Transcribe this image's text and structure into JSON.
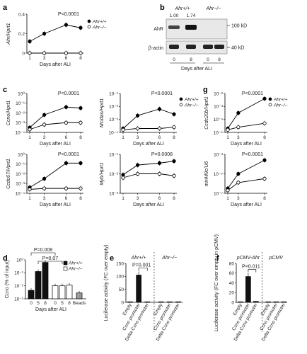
{
  "chart_data": [
    {
      "id": "a",
      "panel": "a",
      "type": "line",
      "x": [
        1,
        3,
        6,
        8
      ],
      "xlabel": "Days after ALI",
      "ylabel": "Ahr/Hprt1",
      "ylim": [
        0,
        0.4
      ],
      "ytick_labels": [
        "0",
        "0.2",
        "0.4"
      ],
      "scale": "linear",
      "stat": "P<0.0001",
      "series": [
        {
          "name": "Ahr+/+",
          "values": [
            0.12,
            0.2,
            0.29,
            0.26
          ],
          "marker": "filled"
        },
        {
          "name": "Ahr−/−",
          "values": [
            0.0,
            0.0,
            0.0,
            0.0
          ],
          "marker": "open"
        }
      ]
    },
    {
      "id": "b",
      "panel": "b",
      "type": "table",
      "title_wt": "Ahr+/+",
      "title_ko": "Ahr−/−",
      "band_values": [
        "1.00",
        "1.74"
      ],
      "rows": [
        "AhR",
        "β-actin"
      ],
      "sizes": [
        "100 kD",
        "40 kD"
      ],
      "lanes": [
        "0",
        "8",
        "0",
        "8"
      ],
      "xlabel": "Days after ALI"
    },
    {
      "id": "c1",
      "panel": "c",
      "type": "line",
      "x": [
        1,
        3,
        6,
        8
      ],
      "xlabel": "Days after ALI",
      "ylabel": "Ccno/Hprt1",
      "scale": "log",
      "ylim": [
        -4,
        0
      ],
      "ytick_labels": [
        "10⁻⁴",
        "10⁻³",
        "10⁻²",
        "10⁻¹",
        "10⁰"
      ],
      "stat": "P<0.0001",
      "series": [
        {
          "name": "Ahr+/+",
          "values": [
            -3.5,
            -2.2,
            -1.4,
            -1.5
          ],
          "marker": "filled"
        },
        {
          "name": "Ahr−/−",
          "values": [
            -3.7,
            -3.2,
            -3.0,
            -3.0
          ],
          "marker": "open"
        }
      ]
    },
    {
      "id": "c2",
      "panel": "",
      "type": "line",
      "x": [
        1,
        3,
        6,
        8
      ],
      "xlabel": "Days after ALI",
      "ylabel": "Mcidas/Hprt1",
      "scale": "log",
      "ylim": [
        -4,
        -1
      ],
      "ytick_labels": [
        "10⁻⁴",
        "10⁻³",
        "10⁻²",
        "10⁻¹"
      ],
      "stat": "P<0.0001",
      "series": [
        {
          "name": "Ahr+/+",
          "values": [
            -3.7,
            -2.7,
            -2.2,
            -2.6
          ],
          "marker": "filled"
        },
        {
          "name": "Ahr−/−",
          "values": [
            -3.8,
            -3.7,
            -3.7,
            -3.6
          ],
          "marker": "open"
        }
      ]
    },
    {
      "id": "c3",
      "panel": "",
      "type": "line",
      "x": [
        1,
        3,
        6,
        8
      ],
      "xlabel": "Days after ALI",
      "ylabel": "Ccdc67/Hprt1",
      "scale": "log",
      "ylim": [
        -4,
        0
      ],
      "ytick_labels": [
        "10⁻⁴",
        "10⁻³",
        "10⁻²",
        "10⁻¹",
        "10⁰"
      ],
      "stat": "P<0.0001",
      "series": [
        {
          "name": "Ahr+/+",
          "values": [
            -3.4,
            -2.5,
            -0.9,
            -0.9
          ],
          "marker": "filled"
        },
        {
          "name": "Ahr−/−",
          "values": [
            -3.6,
            -3.5,
            -3.5,
            -3.5
          ],
          "marker": "open"
        }
      ]
    },
    {
      "id": "c4",
      "panel": "",
      "type": "line",
      "x": [
        1,
        3,
        6,
        8
      ],
      "xlabel": "Days after ALI",
      "ylabel": "Myb/Hprt1",
      "scale": "log",
      "ylim": [
        -3,
        -1
      ],
      "ytick_labels": [
        "10⁻³",
        "10⁻²",
        "10⁻¹"
      ],
      "stat": "P=0.0008",
      "series": [
        {
          "name": "Ahr+/+",
          "values": [
            -2.05,
            -1.55,
            -1.45,
            -1.35
          ],
          "marker": "filled"
        },
        {
          "name": "Ahr−/−",
          "values": [
            -2.2,
            -2.0,
            -2.0,
            -2.1
          ],
          "marker": "open"
        }
      ]
    },
    {
      "id": "g1",
      "panel": "g",
      "type": "line",
      "x": [
        1,
        3,
        8
      ],
      "xlabel": "Days after ALI",
      "ylabel": "Ccdc20b/Hprt1",
      "scale": "log",
      "ylim": [
        -5,
        -2
      ],
      "ytick_labels": [
        "10⁻⁵",
        "10⁻⁴",
        "10⁻³",
        "10⁻²"
      ],
      "stat": "P<0.0001",
      "series": [
        {
          "name": "Ahr+/+",
          "values": [
            -4.7,
            -3.5,
            -2.4
          ],
          "marker": "filled"
        },
        {
          "name": "Ahr−/−",
          "values": [
            -4.8,
            -4.6,
            -4.3
          ],
          "marker": "open"
        }
      ]
    },
    {
      "id": "g2",
      "panel": "",
      "type": "line",
      "x": [
        1,
        3,
        8
      ],
      "xlabel": "Days after ALI",
      "ylabel": "mir449c/U6",
      "scale": "log",
      "ylim": [
        -7,
        -3
      ],
      "ytick_labels": [
        "10⁻⁷",
        "10⁻⁵",
        "10⁻³"
      ],
      "stat": "P<0.0001",
      "series": [
        {
          "name": "Ahr+/+",
          "values": [
            -6.5,
            -5.0,
            -3.6
          ],
          "marker": "filled"
        },
        {
          "name": "Ahr−/−",
          "values": [
            -6.7,
            -5.9,
            -5.5
          ],
          "marker": "open"
        }
      ]
    },
    {
      "id": "d",
      "panel": "d",
      "type": "bar",
      "scale": "log",
      "ylabel": "Ccno (% of input)",
      "xlabel": "Days after ALI",
      "ylim": [
        -3,
        0
      ],
      "ytick_labels": [
        "10⁻³",
        "10⁻²",
        "10⁻¹",
        "10⁰"
      ],
      "categories": [
        "0",
        "5",
        "8",
        "0",
        "5",
        "8",
        "Beads"
      ],
      "values": [
        -2.35,
        -0.9,
        -0.2,
        -2.0,
        -2.0,
        -1.95,
        -2.55
      ],
      "groups": [
        "Ahr+/+",
        "Ahr+/+",
        "Ahr+/+",
        "Ahr−/−",
        "Ahr−/−",
        "Ahr−/−",
        "Beads"
      ],
      "stats": [
        "P=0.008",
        "P=0.07"
      ],
      "legend": [
        "Ahr+/+",
        "Ahr−/−"
      ]
    },
    {
      "id": "e",
      "panel": "e",
      "type": "bar",
      "ylabel": "Luciferase activity (FC over empty)",
      "ylim": [
        0,
        150
      ],
      "ytick_labels": [
        "0",
        "50",
        "100",
        "150"
      ],
      "group_titles": [
        "Ahr+/+",
        "Ahr−/−"
      ],
      "categories": [
        "Empty",
        "Ccno promoter",
        "Delta Ccno promoter",
        "Empty",
        "Ccno promoter",
        "Delta Ccno promoter"
      ],
      "values": [
        0,
        105,
        1,
        0,
        0,
        0
      ],
      "stat": "P=0.001"
    },
    {
      "id": "f",
      "panel": "f",
      "type": "bar",
      "ylabel": "Luciferase activity (FC over empty in pCMV)",
      "ylim": [
        0,
        80
      ],
      "ytick_labels": [
        "0",
        "20",
        "40",
        "60",
        "80"
      ],
      "group_titles": [
        "pCMV-Ahr",
        "pCMV"
      ],
      "categories": [
        "Empty",
        "Ccno promoter",
        "Delta Ccno promoter",
        "Empty",
        "Ccno promoter",
        "Delta Ccno promoter"
      ],
      "values": [
        1,
        53,
        2,
        1,
        1,
        1
      ],
      "stat": "P=0.011"
    }
  ]
}
